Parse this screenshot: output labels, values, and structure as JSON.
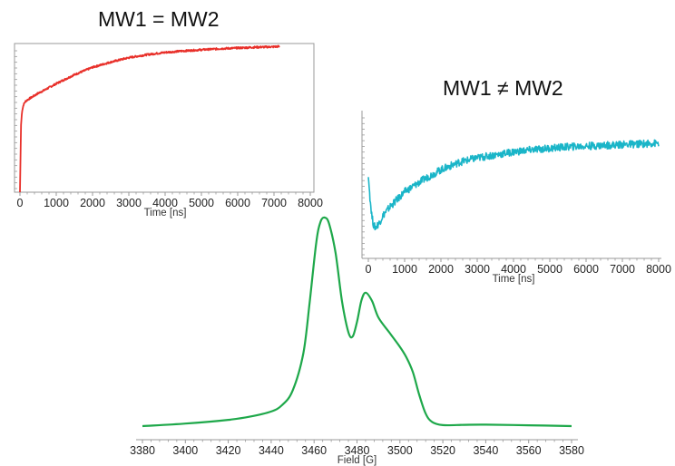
{
  "chart_data": [
    {
      "type": "line",
      "title": "MW1 = MW2",
      "xlabel": "Time [ns]",
      "ylabel": "",
      "xlim": [
        0,
        8000
      ],
      "xticks": [
        0,
        1000,
        2000,
        3000,
        4000,
        5000,
        6000,
        7000,
        8000
      ],
      "grid": false,
      "y_tick_labels": false,
      "color": "#e8302a",
      "series": [
        {
          "x": [
            0,
            30,
            60,
            100,
            150,
            200,
            300,
            400,
            500,
            700,
            1000,
            1500,
            2000,
            2500,
            3000,
            3500,
            4000,
            4500,
            5000,
            5500,
            6000,
            6500,
            7000,
            7150
          ],
          "y": [
            0.0,
            0.45,
            0.55,
            0.59,
            0.61,
            0.62,
            0.635,
            0.65,
            0.665,
            0.69,
            0.73,
            0.79,
            0.84,
            0.875,
            0.905,
            0.925,
            0.94,
            0.95,
            0.958,
            0.965,
            0.97,
            0.975,
            0.978,
            0.98
          ]
        }
      ]
    },
    {
      "type": "line",
      "title": "MW1 ≠ MW2",
      "xlabel": "Time [ns]",
      "ylabel": "",
      "xlim": [
        0,
        8000
      ],
      "xticks": [
        0,
        1000,
        2000,
        3000,
        4000,
        5000,
        6000,
        7000,
        8000
      ],
      "grid": false,
      "y_tick_labels": false,
      "color": "#1ab5c8",
      "series": [
        {
          "x": [
            0,
            50,
            100,
            150,
            200,
            300,
            400,
            600,
            800,
            1000,
            1500,
            2000,
            2500,
            3000,
            3500,
            4000,
            4500,
            5000,
            5500,
            6000,
            6500,
            7000,
            7500,
            8000
          ],
          "y": [
            0.55,
            0.4,
            0.28,
            0.22,
            0.21,
            0.24,
            0.29,
            0.35,
            0.4,
            0.45,
            0.53,
            0.6,
            0.65,
            0.68,
            0.7,
            0.72,
            0.735,
            0.745,
            0.755,
            0.76,
            0.765,
            0.77,
            0.775,
            0.78
          ]
        }
      ]
    },
    {
      "type": "line",
      "title": "",
      "xlabel": "Field [G]",
      "ylabel": "",
      "xlim": [
        3380,
        3580
      ],
      "xticks": [
        3380,
        3400,
        3420,
        3440,
        3460,
        3480,
        3500,
        3520,
        3540,
        3560,
        3580
      ],
      "grid": false,
      "y_tick_labels": false,
      "color": "#1ea84a",
      "series": [
        {
          "x": [
            3380,
            3400,
            3420,
            3430,
            3440,
            3445,
            3450,
            3455,
            3458,
            3461,
            3463,
            3465,
            3467,
            3470,
            3473,
            3476,
            3478,
            3480,
            3482,
            3484,
            3487,
            3490,
            3495,
            3500,
            3503,
            3506,
            3509,
            3512,
            3515,
            3520,
            3530,
            3540,
            3560,
            3580
          ],
          "y": [
            0.0,
            0.012,
            0.03,
            0.045,
            0.07,
            0.1,
            0.17,
            0.35,
            0.6,
            0.88,
            0.98,
            1.0,
            0.97,
            0.83,
            0.6,
            0.45,
            0.43,
            0.5,
            0.6,
            0.64,
            0.6,
            0.52,
            0.45,
            0.38,
            0.33,
            0.26,
            0.15,
            0.06,
            0.02,
            0.005,
            0.006,
            0.007,
            0.004,
            0.0
          ]
        }
      ]
    }
  ]
}
